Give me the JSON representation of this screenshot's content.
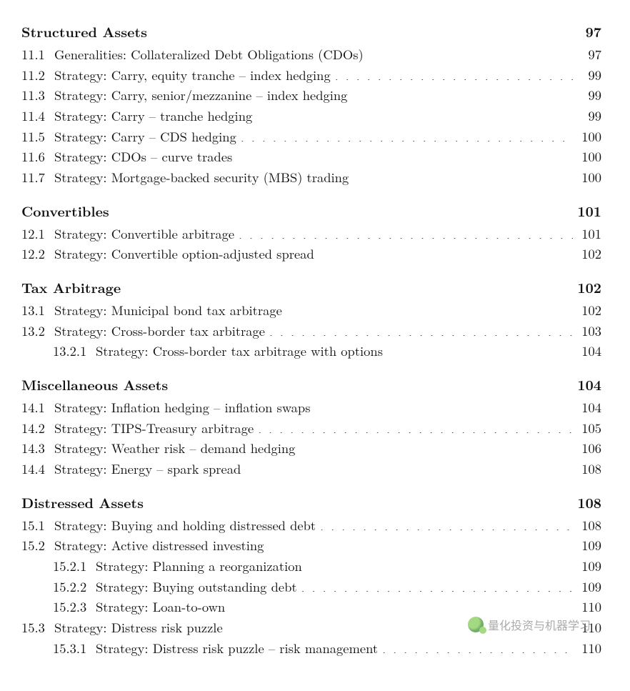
{
  "sections": [
    {
      "title": "Structured Assets",
      "page": "97",
      "entries": [
        {
          "num": "11.1",
          "label": "Generalities: Collateralized Debt Obligations (CDOs)",
          "page": "97",
          "level": 1
        },
        {
          "num": "11.2",
          "label": "Strategy: Carry, equity tranche – index hedging",
          "page": "99",
          "level": 1
        },
        {
          "num": "11.3",
          "label": "Strategy: Carry, senior/mezzanine – index hedging",
          "page": "99",
          "level": 1
        },
        {
          "num": "11.4",
          "label": "Strategy: Carry – tranche hedging",
          "page": "99",
          "level": 1
        },
        {
          "num": "11.5",
          "label": "Strategy: Carry – CDS hedging",
          "page": "100",
          "level": 1
        },
        {
          "num": "11.6",
          "label": "Strategy: CDOs – curve trades",
          "page": "100",
          "level": 1
        },
        {
          "num": "11.7",
          "label": "Strategy: Mortgage-backed security (MBS) trading",
          "page": "100",
          "level": 1
        }
      ]
    },
    {
      "title": "Convertibles",
      "page": "101",
      "entries": [
        {
          "num": "12.1",
          "label": "Strategy: Convertible arbitrage",
          "page": "101",
          "level": 1
        },
        {
          "num": "12.2",
          "label": "Strategy: Convertible option-adjusted spread",
          "page": "102",
          "level": 1
        }
      ]
    },
    {
      "title": "Tax Arbitrage",
      "page": "102",
      "entries": [
        {
          "num": "13.1",
          "label": "Strategy: Municipal bond tax arbitrage",
          "page": "102",
          "level": 1
        },
        {
          "num": "13.2",
          "label": "Strategy: Cross-border tax arbitrage",
          "page": "103",
          "level": 1
        },
        {
          "num": "13.2.1",
          "label": "Strategy: Cross-border tax arbitrage with options",
          "page": "104",
          "level": 2
        }
      ]
    },
    {
      "title": "Miscellaneous Assets",
      "page": "104",
      "entries": [
        {
          "num": "14.1",
          "label": "Strategy: Inflation hedging – inflation swaps",
          "page": "104",
          "level": 1
        },
        {
          "num": "14.2",
          "label": "Strategy: TIPS-Treasury arbitrage",
          "page": "105",
          "level": 1
        },
        {
          "num": "14.3",
          "label": "Strategy: Weather risk – demand hedging",
          "page": "106",
          "level": 1
        },
        {
          "num": "14.4",
          "label": "Strategy: Energy – spark spread",
          "page": "108",
          "level": 1
        }
      ]
    },
    {
      "title": "Distressed Assets",
      "page": "108",
      "entries": [
        {
          "num": "15.1",
          "label": "Strategy: Buying and holding distressed debt",
          "page": "108",
          "level": 1
        },
        {
          "num": "15.2",
          "label": "Strategy: Active distressed investing",
          "page": "109",
          "level": 1
        },
        {
          "num": "15.2.1",
          "label": "Strategy: Planning a reorganization",
          "page": "109",
          "level": 2
        },
        {
          "num": "15.2.2",
          "label": "Strategy: Buying outstanding debt",
          "page": "109",
          "level": 2
        },
        {
          "num": "15.2.3",
          "label": "Strategy: Loan-to-own",
          "page": "110",
          "level": 2
        },
        {
          "num": "15.3",
          "label": "Strategy: Distress risk puzzle",
          "page": "110",
          "level": 1
        },
        {
          "num": "15.3.1",
          "label": "Strategy: Distress risk puzzle – risk management",
          "page": "110",
          "level": 2
        }
      ]
    }
  ],
  "watermark": "量化投资与机器学习"
}
